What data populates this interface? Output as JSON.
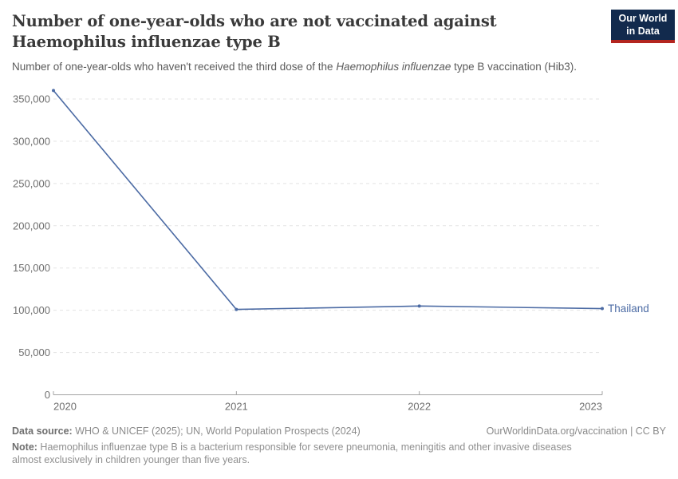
{
  "logo": {
    "line1": "Our World",
    "line2": "in Data",
    "bg_color": "#122a4d",
    "bar_color": "#b3251f"
  },
  "header": {
    "title_line1": "Number of one-year-olds who are not vaccinated against",
    "title_line2": "Haemophilus influenzae type B",
    "subtitle_prefix": "Number of one-year-olds who haven't received the third dose of the ",
    "subtitle_italic": "Haemophilus influenzae",
    "subtitle_suffix": " type B vaccination (Hib3)."
  },
  "chart_data": {
    "type": "line",
    "x": [
      2020,
      2021,
      2022,
      2023
    ],
    "xtick_labels": [
      "2020",
      "2021",
      "2022",
      "2023"
    ],
    "series": [
      {
        "name": "Thailand",
        "values": [
          360000,
          101000,
          105000,
          102000
        ],
        "color": "#4C6BA4"
      }
    ],
    "yticks": [
      0,
      50000,
      100000,
      150000,
      200000,
      250000,
      300000,
      350000
    ],
    "ytick_labels": [
      "0",
      "50,000",
      "100,000",
      "150,000",
      "200,000",
      "250,000",
      "300,000",
      "350,000"
    ],
    "ylim": [
      0,
      350000
    ],
    "xlabel": "",
    "ylabel": "",
    "grid": "horizontal-dashed",
    "legend_position": "end-of-line-label",
    "grid_color": "#e3e3e3",
    "axis_color": "#a3a3a3",
    "tick_label_color": "#6e6e6e"
  },
  "footer": {
    "data_source_label": "Data source:",
    "data_source_value": " WHO & UNICEF (2025); UN, World Population Prospects (2024)",
    "attribution": "OurWorldinData.org/vaccination | CC BY",
    "note_label": "Note:",
    "note_value": " Haemophilus influenzae type B is a bacterium responsible for severe pneumonia, meningitis and other invasive diseases almost exclusively in children younger than five years."
  }
}
